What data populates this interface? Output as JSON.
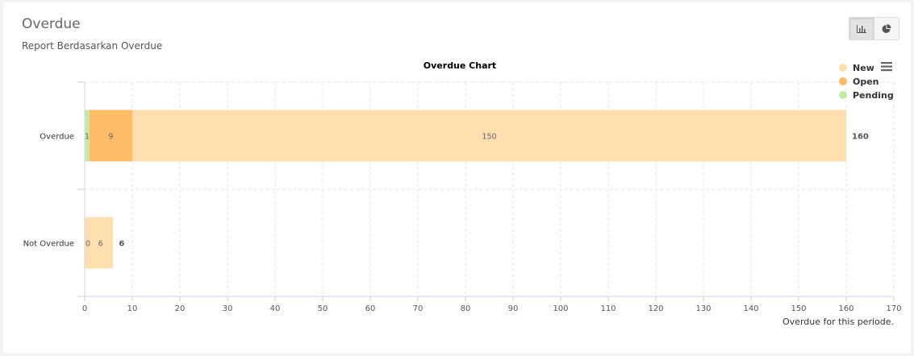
{
  "panel": {
    "title": "Overdue",
    "subtitle": "Report Berdasarkan Overdue"
  },
  "toolbar": {
    "bar_view_icon": "bar-chart-icon",
    "pie_view_icon": "pie-chart-icon",
    "menu_icon": "hamburger-menu-icon"
  },
  "chart_data": {
    "type": "bar",
    "orientation": "horizontal",
    "stacked": true,
    "title": "Overdue Chart",
    "xlabel": "Overdue for this periode.",
    "categories": [
      "Overdue",
      "Not Overdue"
    ],
    "series": [
      {
        "name": "Pending",
        "color": "#c5e8a8",
        "values": [
          1,
          0
        ]
      },
      {
        "name": "Open",
        "color": "#ffbb66",
        "values": [
          9,
          0
        ]
      },
      {
        "name": "New",
        "color": "#ffdfb0",
        "values": [
          150,
          6
        ]
      }
    ],
    "data_labels": [
      [
        "1",
        "9",
        "150"
      ],
      [
        "0",
        "",
        "6"
      ]
    ],
    "totals": [
      160,
      6
    ],
    "xlim": [
      0,
      170
    ],
    "xticks": [
      0,
      10,
      20,
      30,
      40,
      50,
      60,
      70,
      80,
      90,
      100,
      110,
      120,
      130,
      140,
      150,
      160,
      170
    ],
    "legend": {
      "placement": "top-right",
      "items": [
        {
          "name": "New",
          "color": "#ffdfb0"
        },
        {
          "name": "Open",
          "color": "#ffbb66"
        },
        {
          "name": "Pending",
          "color": "#c5e8a8"
        }
      ]
    },
    "grid": true
  }
}
